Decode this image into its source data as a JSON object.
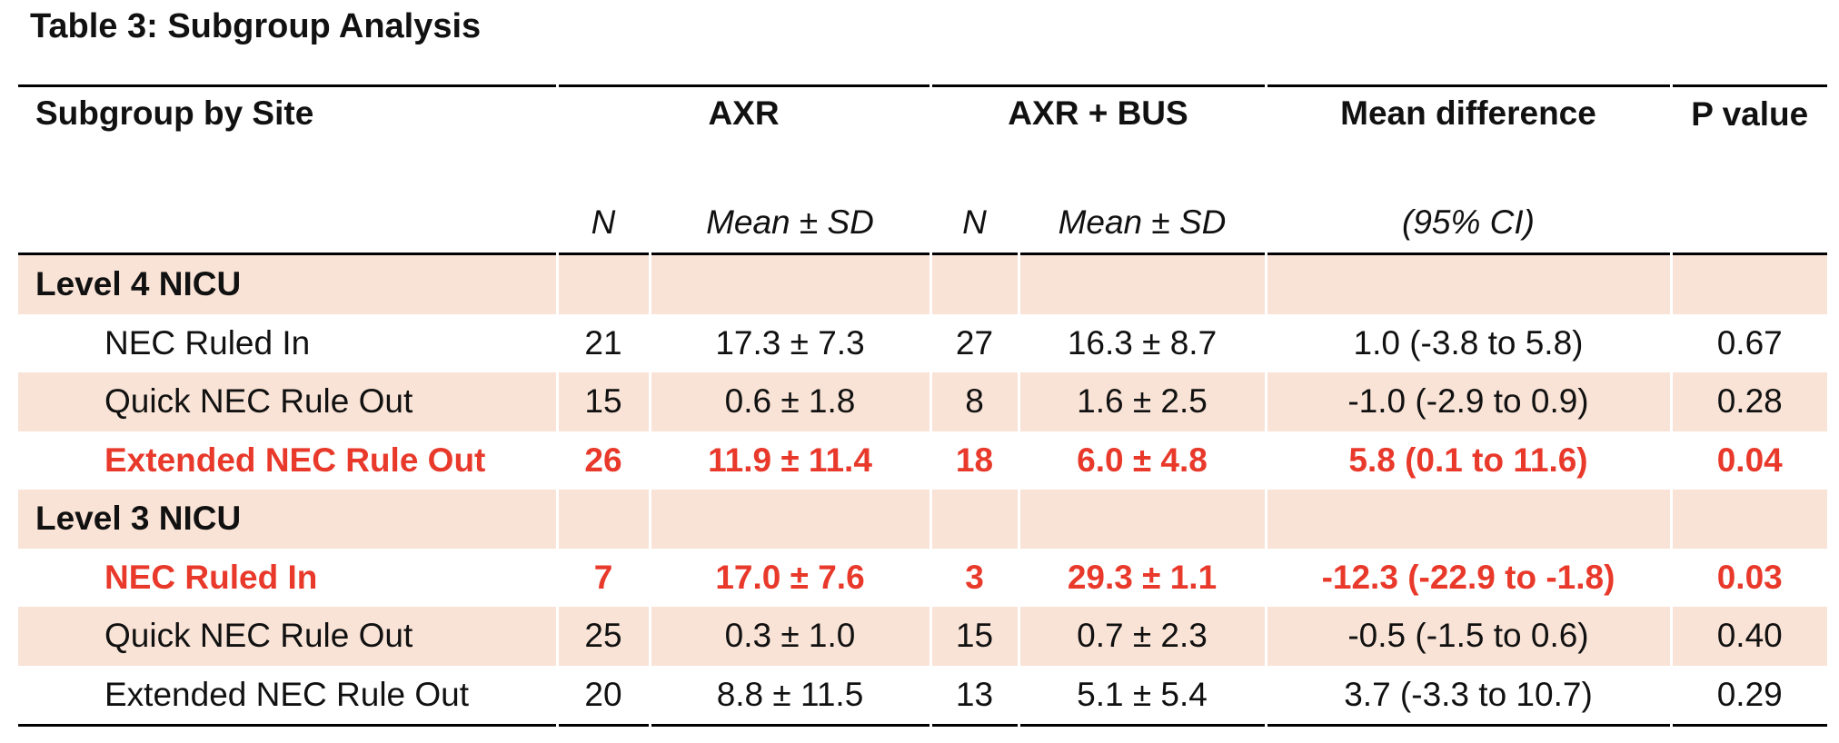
{
  "title": "Table 3: Subgroup Analysis",
  "table": {
    "header": [
      "Subgroup by Site",
      "AXR",
      "AXR + BUS",
      "Mean difference",
      "P value"
    ],
    "subheader": [
      "N",
      "Mean ± SD",
      "N",
      "Mean ± SD",
      "(95% CI)"
    ],
    "rows": [
      {
        "group": "Level 4 NICU"
      },
      {
        "label": "NEC Ruled In",
        "cells": [
          "21",
          "17.3 ± 7.3",
          "27",
          "16.3 ± 8.7",
          "1.0 (-3.8 to 5.8)",
          "0.67"
        ],
        "highlight": false
      },
      {
        "label": "Quick NEC Rule Out",
        "cells": [
          "15",
          "0.6 ± 1.8",
          "8",
          "1.6 ± 2.5",
          "-1.0 (-2.9 to 0.9)",
          "0.28"
        ],
        "highlight": false
      },
      {
        "label": "Extended NEC Rule Out",
        "cells": [
          "26",
          "11.9 ± 11.4",
          "18",
          "6.0 ± 4.8",
          "5.8 (0.1 to 11.6)",
          "0.04"
        ],
        "highlight": true
      },
      {
        "group": "Level 3 NICU"
      },
      {
        "label": "NEC Ruled In",
        "cells": [
          "7",
          "17.0 ± 7.6",
          "3",
          "29.3 ± 1.1",
          "-12.3 (-22.9 to -1.8)",
          "0.03"
        ],
        "highlight": true
      },
      {
        "label": "Quick NEC Rule Out",
        "cells": [
          "25",
          "0.3 ± 1.0",
          "15",
          "0.7 ± 2.3",
          "-0.5 (-1.5 to 0.6)",
          "0.40"
        ],
        "highlight": false
      },
      {
        "label": "Extended NEC Rule Out",
        "cells": [
          "20",
          "8.8 ± 11.5",
          "13",
          "5.1 ± 5.4",
          "3.7 (-3.3 to 10.7)",
          "0.29"
        ],
        "highlight": false
      }
    ]
  }
}
